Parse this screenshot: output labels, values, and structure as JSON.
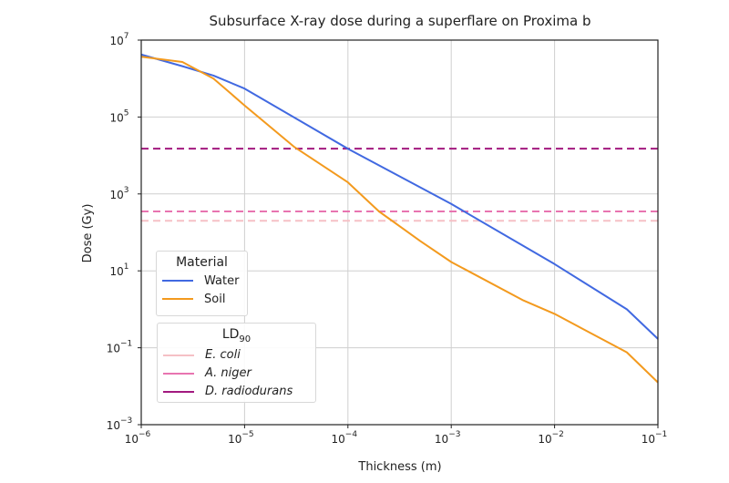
{
  "chart_data": {
    "type": "line",
    "title": "Subsurface X-ray dose during a superflare on Proxima b",
    "xlabel": "Thickness (m)",
    "ylabel": "Dose (Gy)",
    "xscale": "log",
    "yscale": "log",
    "xlim": [
      1e-06,
      0.1
    ],
    "ylim": [
      0.001,
      10000000.0
    ],
    "grid": true,
    "x_ticks": [
      {
        "base": "10",
        "exp": "−6"
      },
      {
        "base": "10",
        "exp": "−5"
      },
      {
        "base": "10",
        "exp": "−4"
      },
      {
        "base": "10",
        "exp": "−3"
      },
      {
        "base": "10",
        "exp": "−2"
      },
      {
        "base": "10",
        "exp": "−1"
      }
    ],
    "x_tick_values": [
      1e-06,
      1e-05,
      0.0001,
      0.001,
      0.01,
      0.1
    ],
    "y_ticks": [
      {
        "base": "10",
        "exp": "7"
      },
      {
        "base": "10",
        "exp": "5"
      },
      {
        "base": "10",
        "exp": "3"
      },
      {
        "base": "10",
        "exp": "1"
      },
      {
        "base": "10",
        "exp": "−1"
      },
      {
        "base": "10",
        "exp": "−3"
      }
    ],
    "y_tick_values": [
      10000000.0,
      100000.0,
      1000.0,
      10.0,
      0.1,
      0.001
    ],
    "series": [
      {
        "name": "Water",
        "color": "#4169e1",
        "x": [
          1e-06,
          2.5e-06,
          5e-06,
          1e-05,
          0.0001,
          0.001,
          0.01,
          0.05,
          0.1
        ],
        "y": [
          4200000.0,
          2100000.0,
          1200000.0,
          550000.0,
          15000.0,
          550,
          15,
          1.0,
          0.17
        ]
      },
      {
        "name": "Soil",
        "color": "#f39a1e",
        "x": [
          1e-06,
          2.5e-06,
          5e-06,
          1e-05,
          3e-05,
          0.0001,
          0.0002,
          0.0005,
          0.001,
          0.005,
          0.01,
          0.05,
          0.1
        ],
        "y": [
          3700000.0,
          2700000.0,
          1000000.0,
          200000.0,
          17000.0,
          2000.0,
          350,
          60,
          17,
          1.7,
          0.76,
          0.076,
          0.0126
        ]
      }
    ],
    "thresholds": [
      {
        "name": "E. coli",
        "value": 200,
        "color": "#f5c0c5"
      },
      {
        "name": "A. niger",
        "value": 350,
        "color": "#e874b0"
      },
      {
        "name": "D. radiodurans",
        "value": 15000,
        "color": "#a2197f"
      }
    ],
    "legend_material": {
      "title": "Material",
      "items": [
        "Water",
        "Soil"
      ]
    },
    "legend_ld": {
      "title": "LD",
      "title_sub": "90",
      "items": [
        "E. coli",
        "A. niger",
        "D. radiodurans"
      ]
    }
  }
}
